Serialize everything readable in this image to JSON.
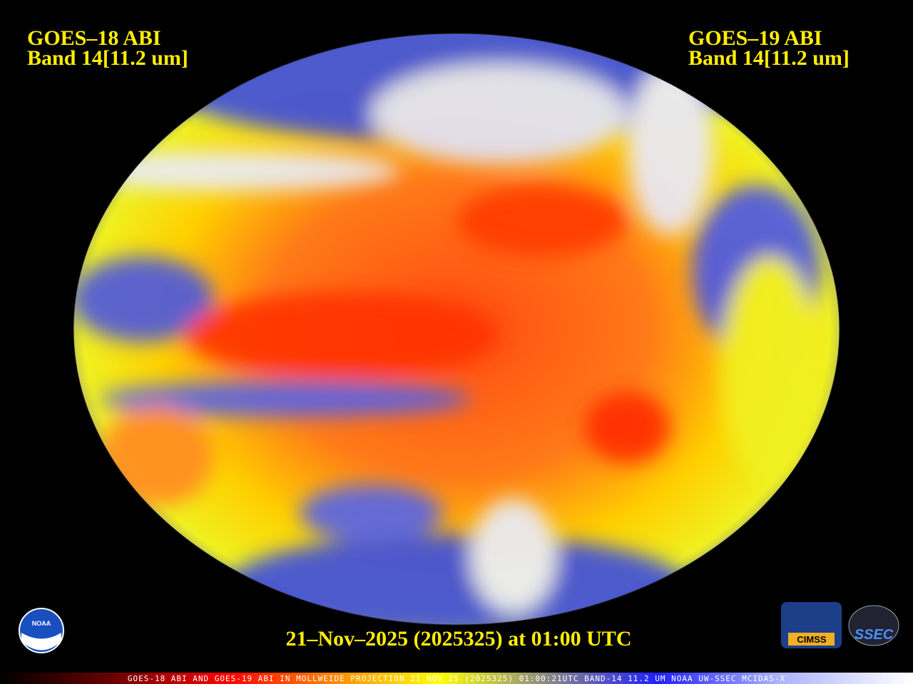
{
  "header": {
    "left": {
      "satellite": "GOES–18 ABI",
      "band": "Band 14[11.2 um]"
    },
    "right": {
      "satellite": "GOES–19 ABI",
      "band": "Band 14[11.2 um]"
    }
  },
  "caption": "21–Nov–2025 (2025325) at 01:00 UTC",
  "logos": {
    "noaa": "NOAA",
    "cimss": "CIMSS",
    "ssec": "SSEC"
  },
  "footer": "GOES-18 ABI AND GOES-19 ABI IN MOLLWEIDE PROJECTION 21 NOV 25 (2025325) 01:00:21UTC BAND-14 11.2 UM NOAA UW-SSEC MCIDAS-X"
}
